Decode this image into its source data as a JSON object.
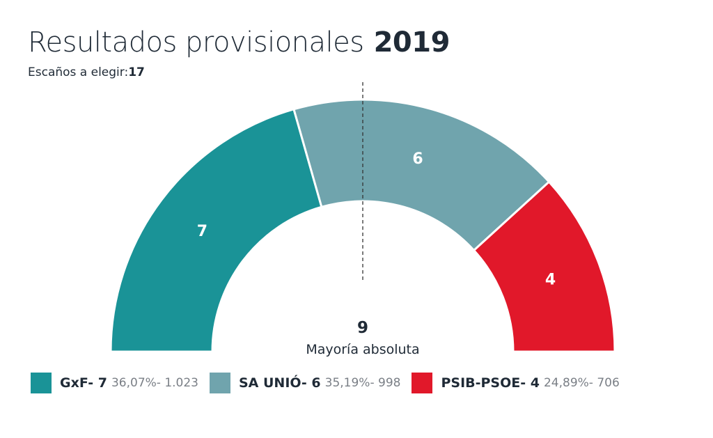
{
  "header": {
    "title": "Resultados provisionales",
    "year": "2019",
    "subtitle_label": "Escaños a elegir:",
    "subtitle_value": "17"
  },
  "chart_data": {
    "type": "pie",
    "subtype": "parliament-half-donut",
    "total_seats": 17,
    "majority": {
      "value": "9",
      "label": "Mayoría absoluta"
    },
    "series": [
      {
        "name": "GxF",
        "seats": 7,
        "label": "7",
        "color": "#1a9397"
      },
      {
        "name": "SA UNIÓ",
        "seats": 6,
        "label": "6",
        "color": "#70a4ad"
      },
      {
        "name": "PSIB-PSOE",
        "seats": 4,
        "label": "4",
        "color": "#e1182a"
      }
    ]
  },
  "legend": [
    {
      "name": "GxF- 7",
      "stats": "36,07%- 1.023",
      "color": "#1a9397"
    },
    {
      "name": "SA UNIÓ- 6",
      "stats": "35,19%- 998",
      "color": "#70a4ad"
    },
    {
      "name": "PSIB-PSOE- 4",
      "stats": "24,89%- 706",
      "color": "#e1182a"
    }
  ]
}
